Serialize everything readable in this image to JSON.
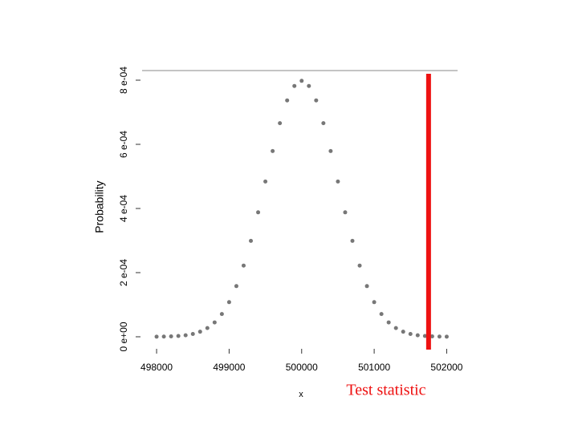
{
  "chart_data": {
    "type": "scatter",
    "x_label": "x",
    "y_label": "Probability",
    "x": [
      498000,
      498100,
      498200,
      498300,
      498400,
      498500,
      498600,
      498700,
      498800,
      498900,
      499000,
      499100,
      499200,
      499300,
      499400,
      499500,
      499600,
      499700,
      499800,
      499900,
      500000,
      500100,
      500200,
      500300,
      500400,
      500500,
      500600,
      500700,
      500800,
      500900,
      501000,
      501100,
      501200,
      501300,
      501400,
      501500,
      501600,
      501700,
      501800,
      501900,
      502000
    ],
    "series": [
      {
        "color": "#555555",
        "values": [
          2.7e-07,
          5.8e-07,
          1.22e-06,
          2.47e-06,
          4.77e-06,
          8.86e-06,
          1.58e-05,
          2.71e-05,
          4.48e-05,
          7.09e-05,
          0.000108,
          0.000158,
          0.000222,
          0.000299,
          0.000388,
          0.000484,
          0.000579,
          0.000666,
          0.000737,
          0.000782,
          0.000798,
          0.000782,
          0.000737,
          0.000666,
          0.000579,
          0.000484,
          0.000388,
          0.000299,
          0.000222,
          0.000158,
          0.000108,
          7.09e-05,
          4.48e-05,
          2.71e-05,
          1.58e-05,
          8.86e-06,
          4.77e-06,
          2.47e-06,
          1.22e-06,
          5.8e-07,
          2.7e-07
        ]
      }
    ],
    "test_statistic": 501750,
    "test_statistic_color": "#ee1111",
    "annotation": "Test statistic",
    "xlim": [
      497800,
      502150
    ],
    "xticks": [
      498000,
      499000,
      500000,
      501000,
      502000
    ],
    "ylim": [
      -4e-05,
      0.00083
    ],
    "yticks": [
      {
        "value": 0,
        "label": "0 e+00"
      },
      {
        "value": 0.0002,
        "label": "2 e-04"
      },
      {
        "value": 0.0004,
        "label": "4 e-04"
      },
      {
        "value": 0.0006,
        "label": "6 e-04"
      },
      {
        "value": 0.0008,
        "label": "8 e-04"
      }
    ]
  }
}
